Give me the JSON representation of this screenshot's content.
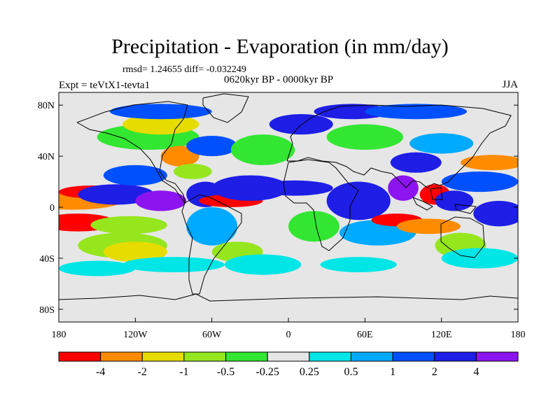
{
  "chart_data": {
    "type": "heatmap",
    "title": "Precipitation - Evaporation (in mm/day)",
    "stats": "rmsd= 1.24655 diff= -0.032249",
    "left_label": "Expt = teVtX1-tevta1",
    "center_label": "0620kyr BP - 0000kyr BP",
    "right_label": "JJA",
    "x_ticks": [
      "180",
      "120W",
      "60W",
      "0",
      "60E",
      "120E",
      "180"
    ],
    "x_tick_values": [
      -180,
      -120,
      -60,
      0,
      60,
      120,
      180
    ],
    "y_ticks": [
      "80N",
      "40N",
      "0",
      "40S",
      "80S"
    ],
    "y_tick_values": [
      80,
      40,
      0,
      -40,
      -80
    ],
    "xlim": [
      -180,
      180
    ],
    "ylim": [
      -90,
      90
    ],
    "colorbar": {
      "labels": [
        "-4",
        "-2",
        "-1",
        "-0.5",
        "-0.25",
        "0.25",
        "0.5",
        "1",
        "2",
        "4"
      ],
      "colors": [
        "#ff0000",
        "#ff8c00",
        "#e6dc00",
        "#96e61e",
        "#32e632",
        "#e6e6e6",
        "#00e6e6",
        "#00aaff",
        "#0050ff",
        "#1e1ee6",
        "#8c14f0"
      ]
    },
    "background_color": "#e6e6e6",
    "regions": [
      {
        "lon": -170,
        "lat": 5,
        "rx": 40,
        "ry": 7,
        "level": 1
      },
      {
        "lon": -155,
        "lat": 12,
        "rx": 25,
        "ry": 5,
        "level": 0
      },
      {
        "lon": -165,
        "lat": -12,
        "rx": 30,
        "ry": 7,
        "level": 0
      },
      {
        "lon": -125,
        "lat": -14,
        "rx": 30,
        "ry": 7,
        "level": 3
      },
      {
        "lon": -130,
        "lat": -30,
        "rx": 35,
        "ry": 10,
        "level": 3
      },
      {
        "lon": -120,
        "lat": -35,
        "rx": 25,
        "ry": 8,
        "level": 2
      },
      {
        "lon": -150,
        "lat": -48,
        "rx": 30,
        "ry": 6,
        "level": 6
      },
      {
        "lon": -135,
        "lat": 10,
        "rx": 30,
        "ry": 8,
        "level": 9
      },
      {
        "lon": -120,
        "lat": 25,
        "rx": 25,
        "ry": 8,
        "level": 8
      },
      {
        "lon": -100,
        "lat": 5,
        "rx": 20,
        "ry": 8,
        "level": 10
      },
      {
        "lon": -110,
        "lat": 55,
        "rx": 40,
        "ry": 10,
        "level": 4
      },
      {
        "lon": -100,
        "lat": 65,
        "rx": 30,
        "ry": 8,
        "level": 2
      },
      {
        "lon": -85,
        "lat": 40,
        "rx": 15,
        "ry": 8,
        "level": 1
      },
      {
        "lon": -75,
        "lat": 28,
        "rx": 15,
        "ry": 6,
        "level": 3
      },
      {
        "lon": -60,
        "lat": 48,
        "rx": 20,
        "ry": 8,
        "level": 8
      },
      {
        "lon": -65,
        "lat": 10,
        "rx": 15,
        "ry": 10,
        "level": 9
      },
      {
        "lon": -60,
        "lat": -15,
        "rx": 20,
        "ry": 15,
        "level": 7
      },
      {
        "lon": -45,
        "lat": 5,
        "rx": 25,
        "ry": 5,
        "level": 0
      },
      {
        "lon": -30,
        "lat": 15,
        "rx": 30,
        "ry": 10,
        "level": 9
      },
      {
        "lon": -40,
        "lat": -35,
        "rx": 20,
        "ry": 8,
        "level": 3
      },
      {
        "lon": -20,
        "lat": 45,
        "rx": 25,
        "ry": 12,
        "level": 4
      },
      {
        "lon": -20,
        "lat": -45,
        "rx": 30,
        "ry": 8,
        "level": 6
      },
      {
        "lon": 10,
        "lat": 65,
        "rx": 25,
        "ry": 8,
        "level": 9
      },
      {
        "lon": 5,
        "lat": 15,
        "rx": 30,
        "ry": 6,
        "level": 9
      },
      {
        "lon": 20,
        "lat": -15,
        "rx": 20,
        "ry": 12,
        "level": 4
      },
      {
        "lon": 50,
        "lat": 75,
        "rx": 30,
        "ry": 6,
        "level": 9
      },
      {
        "lon": 60,
        "lat": 55,
        "rx": 30,
        "ry": 10,
        "level": 4
      },
      {
        "lon": 55,
        "lat": 5,
        "rx": 25,
        "ry": 15,
        "level": 9
      },
      {
        "lon": 70,
        "lat": -20,
        "rx": 30,
        "ry": 10,
        "level": 7
      },
      {
        "lon": 85,
        "lat": -10,
        "rx": 20,
        "ry": 5,
        "level": 0
      },
      {
        "lon": 55,
        "lat": -45,
        "rx": 30,
        "ry": 6,
        "level": 6
      },
      {
        "lon": 110,
        "lat": -15,
        "rx": 25,
        "ry": 6,
        "level": 1
      },
      {
        "lon": 90,
        "lat": 15,
        "rx": 12,
        "ry": 10,
        "level": 10
      },
      {
        "lon": 100,
        "lat": 35,
        "rx": 20,
        "ry": 8,
        "level": 9
      },
      {
        "lon": 115,
        "lat": 10,
        "rx": 12,
        "ry": 8,
        "level": 0
      },
      {
        "lon": 130,
        "lat": 5,
        "rx": 15,
        "ry": 8,
        "level": 9
      },
      {
        "lon": 135,
        "lat": -30,
        "rx": 20,
        "ry": 10,
        "level": 3
      },
      {
        "lon": 120,
        "lat": 50,
        "rx": 25,
        "ry": 8,
        "level": 7
      },
      {
        "lon": 100,
        "lat": 75,
        "rx": 40,
        "ry": 6,
        "level": 8
      },
      {
        "lon": 160,
        "lat": 35,
        "rx": 25,
        "ry": 6,
        "level": 1
      },
      {
        "lon": 150,
        "lat": 20,
        "rx": 30,
        "ry": 8,
        "level": 8
      },
      {
        "lon": 165,
        "lat": -5,
        "rx": 20,
        "ry": 10,
        "level": 9
      },
      {
        "lon": 150,
        "lat": -40,
        "rx": 30,
        "ry": 8,
        "level": 6
      },
      {
        "lon": -90,
        "lat": -45,
        "rx": 40,
        "ry": 6,
        "level": 6
      },
      {
        "lon": -100,
        "lat": 75,
        "rx": 40,
        "ry": 6,
        "level": 8
      }
    ]
  }
}
